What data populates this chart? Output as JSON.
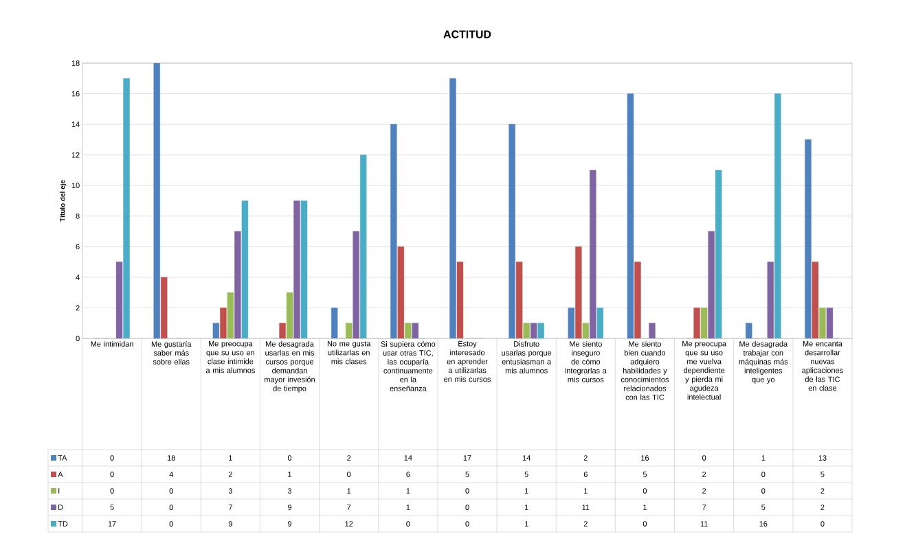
{
  "chart_data": {
    "type": "bar",
    "title": "ACTITUD",
    "ylabel": "Título del eje",
    "categories": [
      "Me intimidan",
      "Me gustaría saber más sobre ellas",
      "Me preocupa que su uso en clase intimide a mis alumnos",
      "Me desagrada usarlas en mis cursos porque demandan mayor invesión de tiempo",
      "No me gusta utilizarlas en mis clases",
      "Si supiera cómo usar otras TIC, las ocuparía continuamente en la enseñanza",
      "Estoy interesado en aprender a utilizarlas en mis cursos",
      "Disfruto usarlas porque entusiasman a mis alumnos",
      "Me siento inseguro de cómo integrarlas a mis cursos",
      "Me siento bien cuando adquiero habilidades y conocimientos relacionados con las TIC",
      "Me preocupa que su uso me vuelva dependiente y pierda mi agudeza intelectual",
      "Me desagrada trabajar con máquinas más inteligentes que yo",
      "Me encanta desarrollar nuevas aplicaciones de las TIC en clase"
    ],
    "series": [
      {
        "name": "TA",
        "color": "#4f81bd",
        "values": [
          0,
          18,
          1,
          0,
          2,
          14,
          17,
          14,
          2,
          16,
          0,
          1,
          13
        ]
      },
      {
        "name": "A",
        "color": "#c0504d",
        "values": [
          0,
          4,
          2,
          1,
          0,
          6,
          5,
          5,
          6,
          5,
          2,
          0,
          5
        ]
      },
      {
        "name": "I",
        "color": "#9bbb59",
        "values": [
          0,
          0,
          3,
          3,
          1,
          1,
          0,
          1,
          1,
          0,
          2,
          0,
          2
        ]
      },
      {
        "name": "D",
        "color": "#8064a2",
        "values": [
          5,
          0,
          7,
          9,
          7,
          1,
          0,
          1,
          11,
          1,
          7,
          5,
          2
        ]
      },
      {
        "name": "TD",
        "color": "#4bacc6",
        "values": [
          17,
          0,
          9,
          9,
          12,
          0,
          0,
          1,
          2,
          0,
          11,
          16,
          0
        ]
      }
    ],
    "ylim": [
      0,
      18
    ],
    "yticks": [
      0,
      2,
      4,
      6,
      8,
      10,
      12,
      14,
      16,
      18
    ],
    "grid": "y",
    "legend": "bottom",
    "data_labels": true
  }
}
